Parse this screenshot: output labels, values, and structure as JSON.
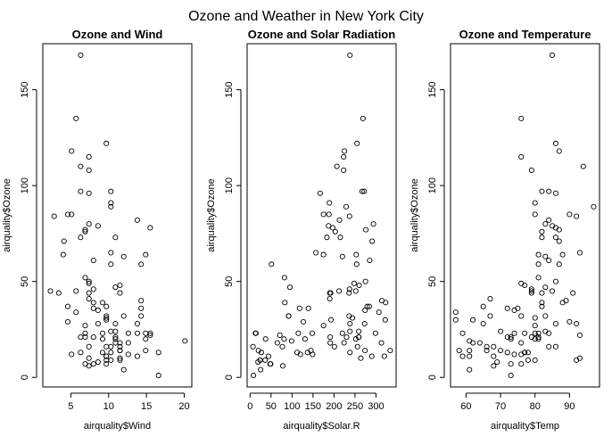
{
  "title": "Ozone and Weather in New York City",
  "chart_data": [
    {
      "type": "scatter",
      "title": "Ozone and Wind",
      "xlabel": "airquality$Wind",
      "ylabel": "airquality$Ozone",
      "xlim": [
        1.3,
        21.0
      ],
      "ylim": [
        -5,
        174
      ],
      "xticks": [
        5,
        10,
        15,
        20
      ],
      "yticks": [
        0,
        50,
        100,
        150
      ],
      "points": [
        [
          7.4,
          41
        ],
        [
          8.0,
          36
        ],
        [
          12.6,
          12
        ],
        [
          11.5,
          18
        ],
        [
          8.6,
          28
        ],
        [
          13.8,
          23
        ],
        [
          20.1,
          19
        ],
        [
          8.6,
          8
        ],
        [
          6.9,
          7
        ],
        [
          9.7,
          16
        ],
        [
          13.8,
          11
        ],
        [
          11.5,
          14
        ],
        [
          10.9,
          18
        ],
        [
          14.9,
          14
        ],
        [
          5.7,
          34
        ],
        [
          7.4,
          6
        ],
        [
          9.7,
          30
        ],
        [
          9.7,
          11
        ],
        [
          16.6,
          1
        ],
        [
          9.7,
          11
        ],
        [
          12.0,
          4
        ],
        [
          12.0,
          32
        ],
        [
          14.9,
          23
        ],
        [
          5.7,
          45
        ],
        [
          7.4,
          115
        ],
        [
          9.7,
          37
        ],
        [
          7.4,
          10
        ],
        [
          4.6,
          29
        ],
        [
          4.1,
          71
        ],
        [
          9.2,
          39
        ],
        [
          9.2,
          23
        ],
        [
          10.9,
          21
        ],
        [
          4.6,
          37
        ],
        [
          10.9,
          20
        ],
        [
          5.1,
          12
        ],
        [
          6.3,
          13
        ],
        [
          5.7,
          135
        ],
        [
          7.4,
          49
        ],
        [
          14.3,
          32
        ],
        [
          14.9,
          64
        ],
        [
          14.3,
          40
        ],
        [
          6.9,
          77
        ],
        [
          10.3,
          97
        ],
        [
          6.3,
          97
        ],
        [
          5.1,
          85
        ],
        [
          11.5,
          10
        ],
        [
          6.9,
          27
        ],
        [
          9.7,
          7
        ],
        [
          11.5,
          48
        ],
        [
          8.6,
          35
        ],
        [
          8.0,
          61
        ],
        [
          8.6,
          79
        ],
        [
          12.0,
          63
        ],
        [
          7.4,
          16
        ],
        [
          7.4,
          80
        ],
        [
          7.4,
          108
        ],
        [
          9.2,
          20
        ],
        [
          6.9,
          52
        ],
        [
          13.8,
          82
        ],
        [
          7.4,
          50
        ],
        [
          4.0,
          64
        ],
        [
          10.3,
          59
        ],
        [
          8.0,
          39
        ],
        [
          11.5,
          9
        ],
        [
          11.5,
          16
        ],
        [
          9.7,
          122
        ],
        [
          10.3,
          89
        ],
        [
          6.3,
          110
        ],
        [
          7.4,
          44
        ],
        [
          10.9,
          28
        ],
        [
          10.3,
          65
        ],
        [
          15.5,
          22
        ],
        [
          14.3,
          59
        ],
        [
          12.6,
          23
        ],
        [
          9.7,
          31
        ],
        [
          3.4,
          44
        ],
        [
          8.0,
          21
        ],
        [
          9.7,
          9
        ],
        [
          2.3,
          45
        ],
        [
          6.3,
          168
        ],
        [
          6.3,
          73
        ],
        [
          6.9,
          76
        ],
        [
          5.1,
          118
        ],
        [
          2.8,
          84
        ],
        [
          4.6,
          85
        ],
        [
          7.4,
          96
        ],
        [
          15.5,
          78
        ],
        [
          10.9,
          73
        ],
        [
          10.3,
          91
        ],
        [
          10.9,
          47
        ],
        [
          9.7,
          32
        ],
        [
          14.9,
          20
        ],
        [
          15.5,
          23
        ],
        [
          6.3,
          21
        ],
        [
          10.9,
          24
        ],
        [
          11.5,
          44
        ],
        [
          6.9,
          21
        ],
        [
          13.8,
          28
        ],
        [
          10.3,
          9
        ],
        [
          10.3,
          13
        ],
        [
          8.0,
          46
        ],
        [
          12.6,
          18
        ],
        [
          9.2,
          13
        ],
        [
          10.3,
          24
        ],
        [
          10.3,
          16
        ],
        [
          16.6,
          13
        ],
        [
          6.9,
          23
        ],
        [
          14.3,
          36
        ],
        [
          8.0,
          7
        ],
        [
          11.5,
          14
        ]
      ]
    },
    {
      "type": "scatter",
      "title": "Ozone and Solar Radiation",
      "xlabel": "airquality$Solar.R",
      "ylabel": "airquality$Ozone",
      "xlim": [
        -7,
        348
      ],
      "ylim": [
        -5,
        174
      ],
      "xticks": [
        0,
        50,
        100,
        150,
        200,
        250,
        300
      ],
      "yticks": [
        0,
        50,
        100,
        150
      ],
      "points": [
        [
          190,
          41
        ],
        [
          118,
          36
        ],
        [
          149,
          12
        ],
        [
          313,
          18
        ],
        [
          299,
          23
        ],
        [
          99,
          19
        ],
        [
          19,
          8
        ],
        [
          256,
          16
        ],
        [
          290,
          11
        ],
        [
          274,
          14
        ],
        [
          65,
          18
        ],
        [
          334,
          14
        ],
        [
          307,
          34
        ],
        [
          78,
          6
        ],
        [
          322,
          30
        ],
        [
          44,
          11
        ],
        [
          8,
          1
        ],
        [
          320,
          11
        ],
        [
          25,
          4
        ],
        [
          92,
          32
        ],
        [
          13,
          23
        ],
        [
          252,
          45
        ],
        [
          223,
          115
        ],
        [
          279,
          37
        ],
        [
          127,
          29
        ],
        [
          291,
          71
        ],
        [
          323,
          39
        ],
        [
          148,
          23
        ],
        [
          191,
          21
        ],
        [
          284,
          37
        ],
        [
          37,
          20
        ],
        [
          120,
          12
        ],
        [
          137,
          13
        ],
        [
          269,
          135
        ],
        [
          248,
          49
        ],
        [
          236,
          32
        ],
        [
          175,
          64
        ],
        [
          314,
          40
        ],
        [
          276,
          77
        ],
        [
          267,
          97
        ],
        [
          272,
          97
        ],
        [
          175,
          85
        ],
        [
          264,
          10
        ],
        [
          175,
          27
        ],
        [
          48,
          7
        ],
        [
          260,
          48
        ],
        [
          274,
          35
        ],
        [
          285,
          61
        ],
        [
          187,
          79
        ],
        [
          220,
          63
        ],
        [
          7,
          16
        ],
        [
          294,
          80
        ],
        [
          223,
          108
        ],
        [
          81,
          20
        ],
        [
          82,
          52
        ],
        [
          213,
          82
        ],
        [
          275,
          50
        ],
        [
          253,
          64
        ],
        [
          254,
          59
        ],
        [
          83,
          39
        ],
        [
          24,
          9
        ],
        [
          77,
          16
        ],
        [
          255,
          122
        ],
        [
          229,
          89
        ],
        [
          207,
          110
        ],
        [
          192,
          44
        ],
        [
          273,
          28
        ],
        [
          157,
          65
        ],
        [
          71,
          22
        ],
        [
          51,
          59
        ],
        [
          115,
          23
        ],
        [
          244,
          31
        ],
        [
          190,
          44
        ],
        [
          259,
          21
        ],
        [
          36,
          9
        ],
        [
          212,
          45
        ],
        [
          238,
          168
        ],
        [
          215,
          73
        ],
        [
          203,
          76
        ],
        [
          225,
          118
        ],
        [
          237,
          84
        ],
        [
          188,
          85
        ],
        [
          167,
          96
        ],
        [
          197,
          78
        ],
        [
          183,
          73
        ],
        [
          189,
          91
        ],
        [
          95,
          47
        ],
        [
          92,
          32
        ],
        [
          252,
          20
        ],
        [
          220,
          23
        ],
        [
          230,
          21
        ],
        [
          259,
          24
        ],
        [
          236,
          44
        ],
        [
          259,
          21
        ],
        [
          238,
          28
        ],
        [
          24,
          9
        ],
        [
          112,
          13
        ],
        [
          237,
          46
        ],
        [
          224,
          18
        ],
        [
          27,
          13
        ],
        [
          238,
          24
        ],
        [
          201,
          16
        ],
        [
          238,
          13
        ],
        [
          14,
          23
        ],
        [
          139,
          36
        ],
        [
          49,
          7
        ],
        [
          20,
          14
        ],
        [
          193,
          30
        ],
        [
          145,
          14
        ],
        [
          191,
          18
        ],
        [
          131,
          20
        ]
      ]
    },
    {
      "type": "scatter",
      "title": "Ozone and Temperature",
      "xlabel": "airquality$Temp",
      "ylabel": "airquality$Ozone",
      "xlim": [
        55.5,
        98.7
      ],
      "ylim": [
        -5,
        174
      ],
      "xticks": [
        60,
        70,
        80,
        90
      ],
      "yticks": [
        0,
        50,
        100,
        150
      ],
      "points": [
        [
          67,
          41
        ],
        [
          72,
          36
        ],
        [
          74,
          12
        ],
        [
          62,
          18
        ],
        [
          65,
          28
        ],
        [
          59,
          23
        ],
        [
          61,
          19
        ],
        [
          69,
          8
        ],
        [
          66,
          16
        ],
        [
          68,
          11
        ],
        [
          58,
          14
        ],
        [
          64,
          18
        ],
        [
          66,
          14
        ],
        [
          57,
          34
        ],
        [
          68,
          6
        ],
        [
          62,
          30
        ],
        [
          59,
          11
        ],
        [
          73,
          1
        ],
        [
          61,
          11
        ],
        [
          61,
          4
        ],
        [
          67,
          32
        ],
        [
          81,
          23
        ],
        [
          79,
          45
        ],
        [
          76,
          115
        ],
        [
          82,
          37
        ],
        [
          90,
          29
        ],
        [
          87,
          71
        ],
        [
          82,
          39
        ],
        [
          77,
          23
        ],
        [
          72,
          21
        ],
        [
          65,
          37
        ],
        [
          73,
          20
        ],
        [
          76,
          12
        ],
        [
          77,
          13
        ],
        [
          76,
          135
        ],
        [
          76,
          49
        ],
        [
          76,
          32
        ],
        [
          81,
          64
        ],
        [
          89,
          40
        ],
        [
          87,
          77
        ],
        [
          84,
          97
        ],
        [
          82,
          97
        ],
        [
          80,
          85
        ],
        [
          93,
          10
        ],
        [
          80,
          27
        ],
        [
          76,
          7
        ],
        [
          77,
          48
        ],
        [
          74,
          35
        ],
        [
          84,
          61
        ],
        [
          85,
          79
        ],
        [
          83,
          63
        ],
        [
          84,
          16
        ],
        [
          83,
          80
        ],
        [
          79,
          108
        ],
        [
          80,
          20
        ],
        [
          81,
          52
        ],
        [
          84,
          82
        ],
        [
          86,
          50
        ],
        [
          88,
          64
        ],
        [
          81,
          59
        ],
        [
          88,
          39
        ],
        [
          92,
          9
        ],
        [
          86,
          16
        ],
        [
          86,
          122
        ],
        [
          97,
          89
        ],
        [
          94,
          110
        ],
        [
          91,
          44
        ],
        [
          92,
          28
        ],
        [
          93,
          65
        ],
        [
          93,
          22
        ],
        [
          87,
          59
        ],
        [
          84,
          23
        ],
        [
          80,
          31
        ],
        [
          79,
          44
        ],
        [
          73,
          21
        ],
        [
          78,
          9
        ],
        [
          85,
          45
        ],
        [
          85,
          168
        ],
        [
          86,
          73
        ],
        [
          82,
          76
        ],
        [
          87,
          118
        ],
        [
          92,
          84
        ],
        [
          90,
          85
        ],
        [
          86,
          96
        ],
        [
          86,
          78
        ],
        [
          82,
          73
        ],
        [
          80,
          91
        ],
        [
          83,
          47
        ],
        [
          83,
          32
        ],
        [
          81,
          20
        ],
        [
          80,
          23
        ],
        [
          79,
          21
        ],
        [
          83,
          24
        ],
        [
          82,
          44
        ],
        [
          81,
          21
        ],
        [
          86,
          28
        ],
        [
          80,
          9
        ],
        [
          77,
          13
        ],
        [
          79,
          46
        ],
        [
          76,
          18
        ],
        [
          78,
          13
        ],
        [
          70,
          24
        ],
        [
          68,
          16
        ],
        [
          72,
          13
        ],
        [
          74,
          23
        ],
        [
          75,
          36
        ],
        [
          73,
          7
        ],
        [
          70,
          14
        ],
        [
          57,
          30
        ],
        [
          61,
          14
        ]
      ]
    }
  ]
}
